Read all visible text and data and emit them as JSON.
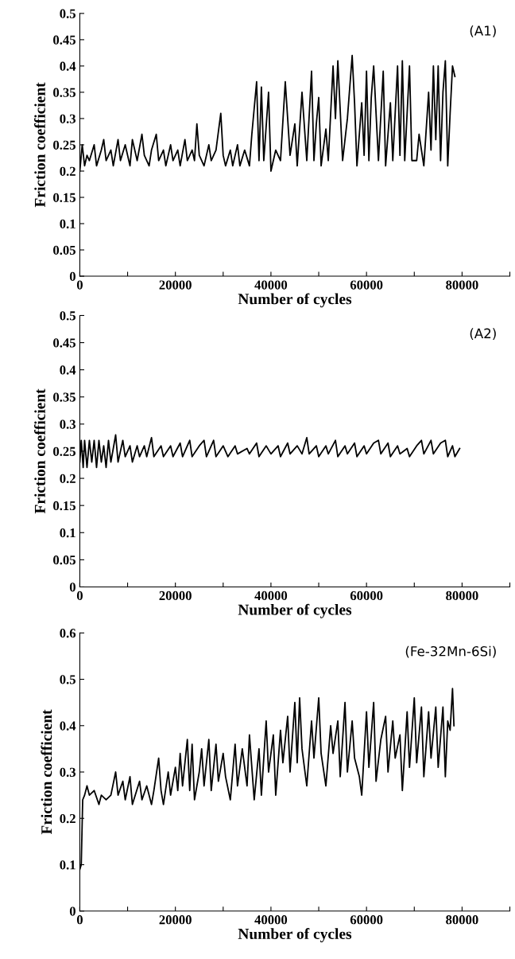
{
  "chart_data": [
    {
      "type": "line",
      "xlabel": "Number of cycles",
      "ylabel": "Friction coefficient",
      "annotations": [
        "(A1)"
      ],
      "xlim": [
        0,
        90000
      ],
      "xticks": [
        0,
        {
          "value": 10000,
          "label": null
        },
        20000,
        {
          "value": 30000,
          "label": null
        },
        40000,
        {
          "value": 50000,
          "label": null
        },
        60000,
        {
          "value": 70000,
          "label": null
        },
        80000,
        {
          "value": 90000,
          "label": null
        }
      ],
      "ylim": [
        0,
        0.5
      ],
      "yticks": [
        0,
        0.05,
        0.1,
        0.15,
        0.2,
        0.25,
        0.3,
        0.35,
        0.4,
        0.45,
        0.5
      ],
      "grid": false,
      "legend": false,
      "marker": "none",
      "line_style": "solid",
      "series": [
        {
          "color": "#000000",
          "x": [
            0,
            500,
            1000,
            1500,
            2000,
            3000,
            3500,
            4500,
            5000,
            5500,
            6500,
            7000,
            8000,
            8500,
            9500,
            10500,
            11000,
            12000,
            13000,
            13500,
            14500,
            15000,
            16000,
            16500,
            17500,
            18000,
            19000,
            19500,
            20500,
            21000,
            22000,
            22500,
            23500,
            24000,
            24500,
            25000,
            26000,
            27000,
            27500,
            28500,
            29500,
            30000,
            30500,
            31500,
            32000,
            33000,
            33500,
            34500,
            35500,
            36000,
            37000,
            37500,
            38000,
            38500,
            39500,
            40000,
            41000,
            42000,
            43000,
            44000,
            45000,
            45500,
            46500,
            47500,
            48500,
            49000,
            49500,
            50000,
            50500,
            51500,
            52000,
            53000,
            53500,
            54000,
            55000,
            56000,
            57000,
            57500,
            58000,
            59000,
            59500,
            60000,
            60500,
            61000,
            61500,
            62500,
            63500,
            64000,
            65000,
            65500,
            66500,
            67000,
            67500,
            68000,
            69000,
            69500,
            70500,
            71000,
            72000,
            73000,
            73500,
            74000,
            74500,
            75000,
            75500,
            76000,
            76500,
            77000,
            77500,
            78000,
            78500
          ],
          "values": [
            0.2,
            0.25,
            0.21,
            0.23,
            0.22,
            0.25,
            0.21,
            0.24,
            0.26,
            0.22,
            0.24,
            0.21,
            0.26,
            0.22,
            0.25,
            0.21,
            0.26,
            0.22,
            0.27,
            0.23,
            0.21,
            0.24,
            0.27,
            0.22,
            0.24,
            0.21,
            0.25,
            0.22,
            0.24,
            0.21,
            0.26,
            0.22,
            0.24,
            0.22,
            0.29,
            0.23,
            0.21,
            0.25,
            0.22,
            0.24,
            0.31,
            0.23,
            0.21,
            0.24,
            0.21,
            0.25,
            0.21,
            0.24,
            0.21,
            0.27,
            0.37,
            0.22,
            0.36,
            0.22,
            0.35,
            0.2,
            0.24,
            0.22,
            0.37,
            0.23,
            0.29,
            0.21,
            0.35,
            0.22,
            0.39,
            0.22,
            0.29,
            0.34,
            0.21,
            0.28,
            0.22,
            0.4,
            0.3,
            0.41,
            0.22,
            0.3,
            0.42,
            0.33,
            0.21,
            0.33,
            0.23,
            0.39,
            0.22,
            0.34,
            0.4,
            0.22,
            0.39,
            0.21,
            0.33,
            0.22,
            0.4,
            0.23,
            0.41,
            0.22,
            0.4,
            0.22,
            0.22,
            0.27,
            0.21,
            0.35,
            0.24,
            0.4,
            0.26,
            0.4,
            0.22,
            0.35,
            0.41,
            0.21,
            0.31,
            0.4,
            0.38
          ]
        }
      ]
    },
    {
      "type": "line",
      "xlabel": "Number of cycles",
      "ylabel": "Friction coefficient",
      "annotations": [
        "(A2)"
      ],
      "xlim": [
        0,
        90000
      ],
      "xticks": [
        0,
        {
          "value": 10000,
          "label": null
        },
        20000,
        {
          "value": 30000,
          "label": null
        },
        40000,
        {
          "value": 50000,
          "label": null
        },
        60000,
        {
          "value": 70000,
          "label": null
        },
        80000,
        {
          "value": 90000,
          "label": null
        }
      ],
      "ylim": [
        0,
        0.5
      ],
      "yticks": [
        0,
        0.05,
        0.1,
        0.15,
        0.2,
        0.25,
        0.3,
        0.35,
        0.4,
        0.45,
        0.5
      ],
      "grid": false,
      "legend": false,
      "marker": "none",
      "line_style": "solid",
      "series": [
        {
          "color": "#000000",
          "x": [
            0,
            300,
            700,
            1000,
            1500,
            2000,
            2500,
            3000,
            3500,
            4000,
            4500,
            5000,
            5500,
            6000,
            6500,
            7500,
            8000,
            9000,
            9500,
            10500,
            11000,
            12000,
            12500,
            13500,
            14000,
            15000,
            15500,
            17000,
            17500,
            19000,
            19500,
            21000,
            21500,
            23000,
            23500,
            25000,
            26000,
            26500,
            28000,
            28500,
            30000,
            31000,
            32500,
            33000,
            35000,
            35500,
            37000,
            37500,
            39000,
            40000,
            41500,
            42000,
            43500,
            44000,
            45500,
            46500,
            47500,
            48000,
            49500,
            50000,
            51500,
            52000,
            53500,
            54000,
            55500,
            56000,
            57500,
            58000,
            59500,
            60000,
            61500,
            62500,
            63000,
            64500,
            65000,
            66500,
            67000,
            68500,
            69000,
            70500,
            71500,
            72000,
            73500,
            74000,
            75500,
            76500,
            77000,
            78000,
            78500,
            79500
          ],
          "values": [
            0.23,
            0.27,
            0.22,
            0.27,
            0.22,
            0.27,
            0.23,
            0.27,
            0.22,
            0.27,
            0.23,
            0.26,
            0.22,
            0.27,
            0.23,
            0.28,
            0.23,
            0.27,
            0.24,
            0.26,
            0.23,
            0.26,
            0.24,
            0.26,
            0.24,
            0.275,
            0.24,
            0.26,
            0.24,
            0.26,
            0.24,
            0.265,
            0.24,
            0.27,
            0.24,
            0.26,
            0.27,
            0.24,
            0.27,
            0.24,
            0.26,
            0.24,
            0.26,
            0.245,
            0.255,
            0.245,
            0.265,
            0.24,
            0.26,
            0.245,
            0.26,
            0.24,
            0.265,
            0.245,
            0.26,
            0.245,
            0.275,
            0.245,
            0.26,
            0.24,
            0.26,
            0.245,
            0.27,
            0.24,
            0.26,
            0.245,
            0.265,
            0.24,
            0.26,
            0.245,
            0.265,
            0.27,
            0.245,
            0.265,
            0.24,
            0.26,
            0.245,
            0.255,
            0.24,
            0.26,
            0.27,
            0.245,
            0.27,
            0.245,
            0.265,
            0.27,
            0.24,
            0.26,
            0.24,
            0.255
          ]
        }
      ]
    },
    {
      "type": "line",
      "xlabel": "Number of cycles",
      "ylabel": "Friction coefficient",
      "annotations": [
        "(Fe-32Mn-6Si)"
      ],
      "xlim": [
        0,
        90000
      ],
      "xticks": [
        0,
        {
          "value": 10000,
          "label": null
        },
        20000,
        {
          "value": 30000,
          "label": null
        },
        40000,
        {
          "value": 50000,
          "label": null
        },
        60000,
        {
          "value": 70000,
          "label": null
        },
        80000,
        {
          "value": 90000,
          "label": null
        }
      ],
      "ylim": [
        0,
        0.6
      ],
      "yticks": [
        0,
        0.1,
        0.2,
        0.3,
        0.4,
        0.5,
        0.6
      ],
      "grid": false,
      "legend": false,
      "marker": "none",
      "line_style": "solid",
      "series": [
        {
          "color": "#000000",
          "x": [
            0,
            300,
            600,
            1000,
            1500,
            2000,
            3000,
            4000,
            4500,
            5500,
            6500,
            7500,
            8000,
            9000,
            9500,
            10500,
            11000,
            12500,
            13000,
            14000,
            15000,
            15500,
            16500,
            17000,
            17500,
            18500,
            19000,
            20000,
            20500,
            21000,
            21500,
            22500,
            23000,
            23500,
            24000,
            25000,
            25500,
            26000,
            27000,
            27500,
            28500,
            29000,
            30000,
            30500,
            31500,
            32500,
            33000,
            34000,
            35000,
            35500,
            36500,
            37500,
            38000,
            39000,
            39500,
            40500,
            41000,
            42000,
            42500,
            43500,
            44000,
            45000,
            45500,
            46000,
            46500,
            47500,
            48500,
            49000,
            50000,
            50500,
            51500,
            52500,
            53000,
            54000,
            54500,
            55500,
            56000,
            57000,
            57500,
            58500,
            59000,
            60000,
            60500,
            61500,
            62000,
            63000,
            64000,
            64500,
            65500,
            66000,
            67000,
            67500,
            68500,
            69000,
            70000,
            70500,
            71500,
            72000,
            73000,
            73500,
            74500,
            75000,
            76000,
            76500,
            77000,
            77500,
            78000,
            78300
          ],
          "values": [
            0.09,
            0.1,
            0.24,
            0.25,
            0.27,
            0.25,
            0.26,
            0.23,
            0.25,
            0.24,
            0.25,
            0.3,
            0.25,
            0.28,
            0.24,
            0.29,
            0.23,
            0.28,
            0.24,
            0.27,
            0.23,
            0.26,
            0.33,
            0.26,
            0.23,
            0.3,
            0.25,
            0.31,
            0.26,
            0.34,
            0.27,
            0.37,
            0.26,
            0.36,
            0.24,
            0.3,
            0.35,
            0.27,
            0.37,
            0.26,
            0.36,
            0.28,
            0.34,
            0.29,
            0.24,
            0.36,
            0.27,
            0.35,
            0.27,
            0.38,
            0.24,
            0.35,
            0.25,
            0.41,
            0.3,
            0.38,
            0.25,
            0.39,
            0.32,
            0.42,
            0.3,
            0.45,
            0.32,
            0.46,
            0.35,
            0.27,
            0.41,
            0.33,
            0.46,
            0.34,
            0.27,
            0.4,
            0.34,
            0.41,
            0.29,
            0.45,
            0.3,
            0.41,
            0.33,
            0.29,
            0.25,
            0.43,
            0.31,
            0.45,
            0.28,
            0.37,
            0.42,
            0.3,
            0.41,
            0.33,
            0.38,
            0.26,
            0.43,
            0.31,
            0.46,
            0.32,
            0.44,
            0.29,
            0.43,
            0.33,
            0.44,
            0.31,
            0.44,
            0.29,
            0.41,
            0.39,
            0.48,
            0.4
          ]
        }
      ]
    }
  ]
}
